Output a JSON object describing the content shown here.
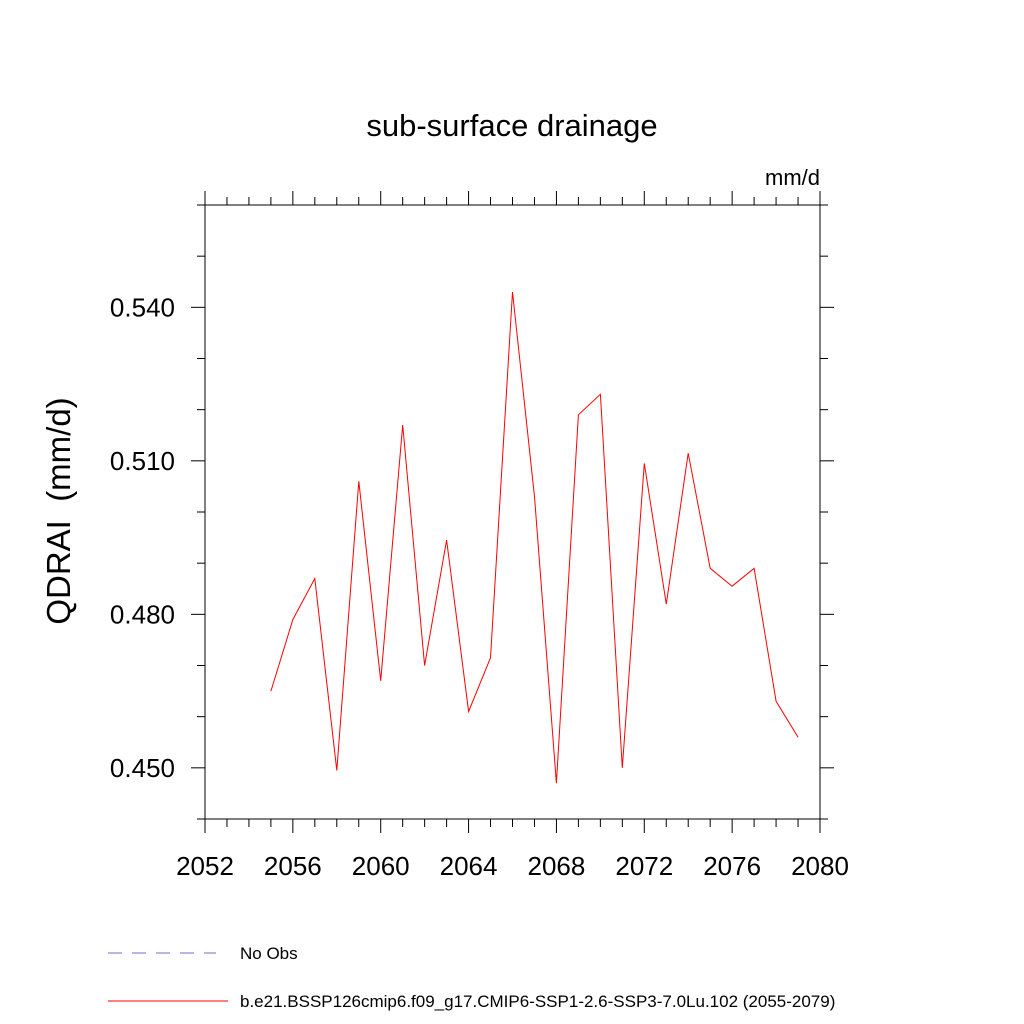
{
  "chart_data": {
    "type": "line",
    "title": "sub-surface drainage",
    "units_label": "mm/d",
    "ylabel": "QDRAI  (mm/d)",
    "xlabel": "",
    "xlim": [
      2052,
      2080
    ],
    "ylim": [
      0.44,
      0.56
    ],
    "x_ticks": [
      2052,
      2056,
      2060,
      2064,
      2068,
      2072,
      2076,
      2080
    ],
    "y_ticks": [
      0.45,
      0.48,
      0.51,
      0.54
    ],
    "y_tick_labels": [
      "0.450",
      "0.480",
      "0.510",
      "0.540"
    ],
    "x_minor_step": 1,
    "y_minor_step": 0.01,
    "grid": false,
    "legend_position": "bottom",
    "series": [
      {
        "name": "b.e21.BSSP126cmip6.f09_g17.CMIP6-SSP1-2.6-SSP3-7.0Lu.102 (2055-2079)",
        "color": "#ff0000",
        "dash": "solid",
        "x": [
          2055,
          2056,
          2057,
          2058,
          2059,
          2060,
          2061,
          2062,
          2063,
          2064,
          2065,
          2066,
          2067,
          2068,
          2069,
          2070,
          2071,
          2072,
          2073,
          2074,
          2075,
          2076,
          2077,
          2078,
          2079
        ],
        "y": [
          0.465,
          0.479,
          0.487,
          0.4495,
          0.506,
          0.467,
          0.517,
          0.47,
          0.4945,
          0.461,
          0.4715,
          0.543,
          0.503,
          0.447,
          0.519,
          0.523,
          0.45,
          0.5095,
          0.482,
          0.5115,
          0.489,
          0.4855,
          0.489,
          0.463,
          0.456
        ]
      }
    ],
    "legend": [
      {
        "label": "No Obs",
        "color": "#7b68c8",
        "dash": "dashed"
      },
      {
        "label": "b.e21.BSSP126cmip6.f09_g17.CMIP6-SSP1-2.6-SSP3-7.0Lu.102 (2055-2079)",
        "color": "#ff0000",
        "dash": "solid"
      }
    ]
  }
}
